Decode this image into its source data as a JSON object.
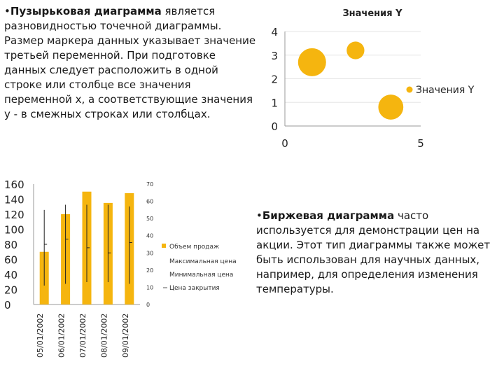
{
  "bubble_text": {
    "bullet": "•",
    "bold": "Пузырьковая диаграмма",
    "rest": " является разновидностью точечной диаграммы. Размер маркера данных указывает значение третьей переменной. При подготовке данных следует расположить в одной строке или столбце все значения переменной x, а соответствующие значения y - в смежных строках или столбцах."
  },
  "stock_text": {
    "bullet": "•",
    "bold": "Биржевая диаграмма",
    "rest": " часто используется для демонстрации цен на акции. Этот тип диаграммы также может быть использован для научных данных, например, для определения изменения температуры."
  },
  "colors": {
    "accent": "#f5b50f",
    "line": "#222222",
    "axis": "#888888"
  },
  "chart_data": [
    {
      "type": "scatter",
      "subtype": "bubble",
      "title": "Значения Y",
      "legend": "Значения Y",
      "legend_position": "right",
      "xlim": [
        0,
        5
      ],
      "ylim": [
        0,
        4
      ],
      "x_ticks": [
        "0",
        "5"
      ],
      "y_ticks": [
        "0",
        "1",
        "2",
        "3",
        "4"
      ],
      "points": [
        {
          "x": 1,
          "y": 2.7,
          "size": 3
        },
        {
          "x": 2.6,
          "y": 3.2,
          "size": 1.2
        },
        {
          "x": 3.9,
          "y": 0.8,
          "size": 2.4
        }
      ]
    },
    {
      "type": "bar",
      "subtype": "stock-volume-hlc",
      "categories": [
        "05/01/2002",
        "06/01/2002",
        "07/01/2002",
        "08/01/2002",
        "09/01/2002"
      ],
      "series": [
        {
          "name": "Объем продаж",
          "axis": "left",
          "values": [
            70,
            120,
            150,
            135,
            148
          ]
        },
        {
          "name": "Максимальная цена",
          "axis": "right",
          "values": [
            55,
            58,
            58,
            58,
            57
          ]
        },
        {
          "name": "Минимальная цена",
          "axis": "right",
          "values": [
            11,
            12,
            13,
            13,
            12
          ]
        },
        {
          "name": "Цена закрытия",
          "axis": "right",
          "values": [
            35,
            38,
            33,
            30,
            36
          ]
        }
      ],
      "y_left": {
        "lim": [
          0,
          160
        ],
        "ticks": [
          "0",
          "20",
          "40",
          "60",
          "80",
          "100",
          "120",
          "140",
          "160"
        ]
      },
      "y_right": {
        "lim": [
          0,
          70
        ],
        "ticks": [
          "0",
          "10",
          "20",
          "30",
          "40",
          "50",
          "60",
          "70"
        ]
      },
      "legend_position": "right"
    }
  ]
}
